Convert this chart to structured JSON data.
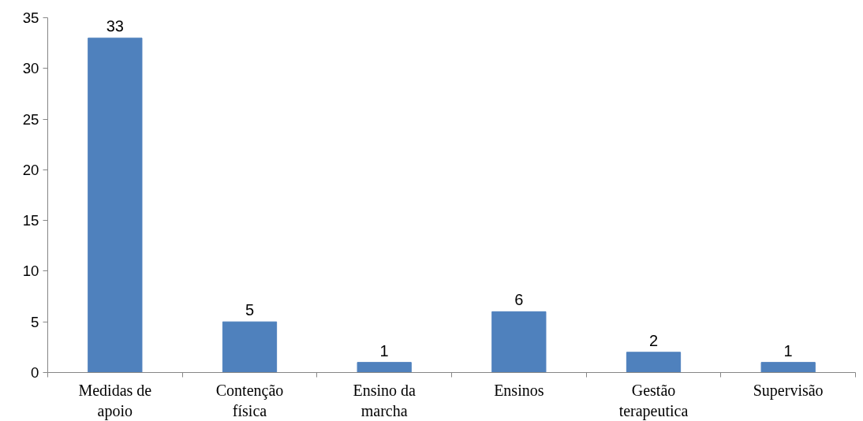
{
  "chart_data": {
    "type": "bar",
    "categories": [
      "Medidas de apoio",
      "Contenção física",
      "Ensino da marcha",
      "Ensinos",
      "Gestão terapeutica",
      "Supervisão"
    ],
    "values": [
      33,
      5,
      1,
      6,
      2,
      1
    ],
    "color": "#4f81bd",
    "ylim": [
      0,
      35
    ],
    "yticks": [
      0,
      5,
      10,
      15,
      20,
      25,
      30,
      35
    ],
    "data_labels": true,
    "grid": false
  }
}
